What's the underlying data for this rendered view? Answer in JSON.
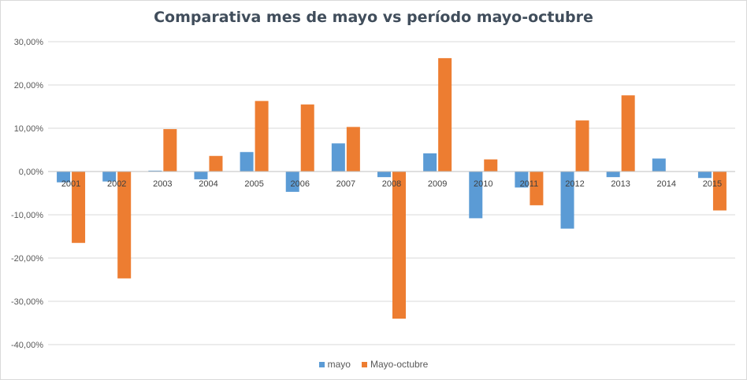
{
  "chart_data": {
    "type": "bar",
    "title": "Comparativa  mes de mayo vs período mayo-octubre",
    "xlabel": "",
    "ylabel": "",
    "ylim": [
      -40,
      30
    ],
    "y_ticks": [
      30,
      20,
      10,
      0,
      -10,
      -20,
      -30,
      -40
    ],
    "y_tick_labels": [
      "30,00%",
      "20,00%",
      "10,00%",
      "0,00%",
      "-10,00%",
      "-20,00%",
      "-30,00%",
      "-40,00%"
    ],
    "categories": [
      "2001",
      "2002",
      "2003",
      "2004",
      "2005",
      "2006",
      "2007",
      "2008",
      "2009",
      "2010",
      "2011",
      "2012",
      "2013",
      "2014",
      "2015"
    ],
    "series": [
      {
        "name": "mayo",
        "color": "#5b9bd5",
        "values": [
          -2.5,
          -2.3,
          0.2,
          -1.8,
          4.5,
          -4.7,
          6.5,
          -1.3,
          4.2,
          -10.8,
          -3.7,
          -13.2,
          -1.3,
          3.0,
          -1.5
        ]
      },
      {
        "name": "Mayo-octubre",
        "color": "#ed7d31",
        "values": [
          -16.5,
          -24.7,
          9.8,
          3.6,
          16.3,
          15.5,
          10.3,
          -34.0,
          26.2,
          2.8,
          -7.8,
          11.8,
          17.6,
          0,
          -9.0
        ]
      }
    ],
    "legend_position": "bottom",
    "grid": true
  }
}
